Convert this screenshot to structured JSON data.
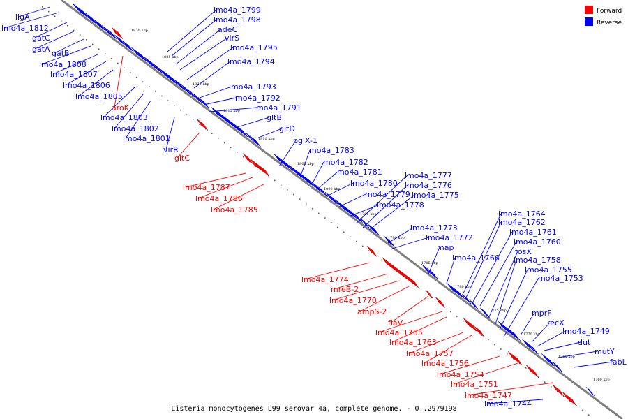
{
  "caption": "Listeria monocytogenes L99 serovar 4a, complete genome. - 0..2979198",
  "legend": [
    {
      "label": "Forward",
      "color": "#ff0000"
    },
    {
      "label": "Reverse",
      "color": "#0000ff"
    }
  ],
  "colors": {
    "forward": "#ff0000",
    "reverse": "#0000ff",
    "backbone": "#808080"
  },
  "ticks": [
    "1830 kbp",
    "1825 kbp",
    "1820 kbp",
    "1815 kbp",
    "1810 kbp",
    "1805 kbp",
    "1800 kbp",
    "1795 kbp",
    "1790 kbp",
    "1785 kbp",
    "1780 kbp",
    "1775 kbp",
    "1770 kbp",
    "1765 kbp",
    "1760 kbp"
  ],
  "reverse_labels": [
    "ligA",
    "lmo4a_1812",
    "gatC",
    "gatA",
    "gatB",
    "lmo4a_1808",
    "lmo4a_1807",
    "lmo4a_1806",
    "lmo4a_1805",
    "lmo4a_1803",
    "lmo4a_1802",
    "lmo4a_1801",
    "virR",
    "lmo4a_1799",
    "lmo4a_1798",
    "adeC",
    "virS",
    "lmo4a_1795",
    "lmo4a_1794",
    "lmo4a_1793",
    "lmo4a_1792",
    "lmo4a_1791",
    "gltB",
    "gltD",
    "bglX-1",
    "lmo4a_1783",
    "lmo4a_1782",
    "lmo4a_1781",
    "lmo4a_1780",
    "lmo4a_1779",
    "lmo4a_1778",
    "lmo4a_1777",
    "lmo4a_1776",
    "lmo4a_1775",
    "lmo4a_1773",
    "lmo4a_1772",
    "map",
    "lmo4a_1766",
    "lmo4a_1764",
    "lmo4a_1762",
    "lmo4a_1761",
    "lmo4a_1760",
    "fosX",
    "lmo4a_1758",
    "lmo4a_1755",
    "lmo4a_1753",
    "mprF",
    "recX",
    "lmo4a_1749",
    "dut",
    "mutY",
    "fabL",
    "lmo4a_1744"
  ],
  "forward_labels": [
    "aroK",
    "gltC",
    "lmo4a_1787",
    "lmo4a_1786",
    "lmo4a_1785",
    "lmo4a_1774",
    "mreB-2",
    "lmo4a_1770",
    "ampS-2",
    "flaV",
    "lmo4a_1765",
    "lmo4a_1763",
    "lmo4a_1757",
    "lmo4a_1756",
    "lmo4a_1754",
    "lmo4a_1751",
    "lmo4a_1747"
  ]
}
